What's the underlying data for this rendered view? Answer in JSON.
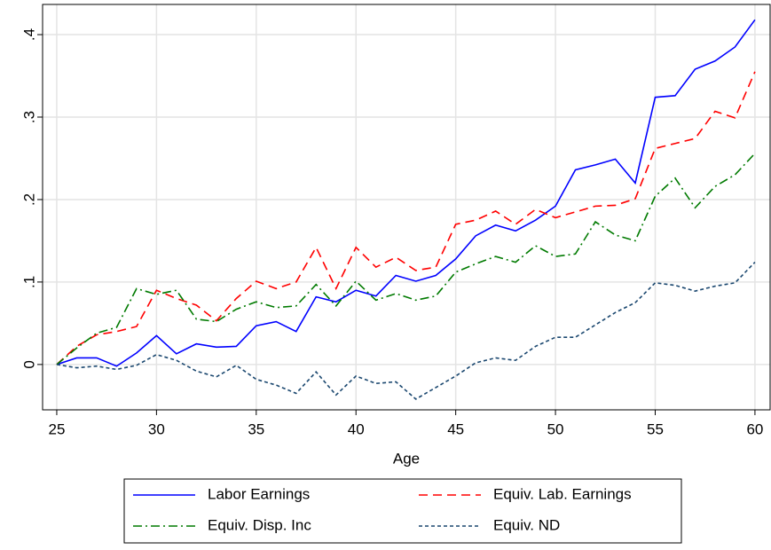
{
  "chart_data": {
    "type": "line",
    "x_label": "Age",
    "x": [
      25,
      26,
      27,
      28,
      29,
      30,
      31,
      32,
      33,
      34,
      35,
      36,
      37,
      38,
      39,
      40,
      41,
      42,
      43,
      44,
      45,
      46,
      47,
      48,
      49,
      50,
      51,
      52,
      53,
      54,
      55,
      56,
      57,
      58,
      59,
      60
    ],
    "series": [
      {
        "name": "Labor Earnings",
        "color": "#0000ff",
        "dash": "none",
        "values": [
          0,
          0.008,
          0.008,
          -0.002,
          0.014,
          0.035,
          0.013,
          0.025,
          0.021,
          0.022,
          0.047,
          0.052,
          0.04,
          0.082,
          0.076,
          0.09,
          0.083,
          0.108,
          0.101,
          0.108,
          0.128,
          0.156,
          0.169,
          0.162,
          0.175,
          0.192,
          0.236,
          0.242,
          0.249,
          0.22,
          0.324,
          0.326,
          0.358,
          0.368,
          0.385,
          0.418
        ]
      },
      {
        "name": "Equiv. Lab. Earnings",
        "color": "#ff0000",
        "dash": "10 6",
        "values": [
          0,
          0.022,
          0.036,
          0.04,
          0.046,
          0.09,
          0.08,
          0.072,
          0.053,
          0.08,
          0.101,
          0.092,
          0.1,
          0.142,
          0.092,
          0.142,
          0.118,
          0.13,
          0.114,
          0.118,
          0.17,
          0.175,
          0.186,
          0.17,
          0.188,
          0.178,
          0.185,
          0.192,
          0.193,
          0.201,
          0.262,
          0.268,
          0.274,
          0.307,
          0.299,
          0.355
        ]
      },
      {
        "name": "Equiv. Disp. Inc",
        "color": "#007a00",
        "dash": "10 4 2 4",
        "values": [
          0,
          0.02,
          0.038,
          0.045,
          0.092,
          0.085,
          0.09,
          0.055,
          0.052,
          0.067,
          0.076,
          0.069,
          0.071,
          0.097,
          0.071,
          0.101,
          0.078,
          0.086,
          0.078,
          0.083,
          0.112,
          0.122,
          0.131,
          0.124,
          0.144,
          0.131,
          0.134,
          0.173,
          0.157,
          0.15,
          0.204,
          0.226,
          0.19,
          0.216,
          0.23,
          0.256
        ]
      },
      {
        "name": "Equiv. ND",
        "color": "#1a476f",
        "dash": "4 3",
        "values": [
          0,
          -0.004,
          -0.002,
          -0.006,
          -0.001,
          0.012,
          0.005,
          -0.008,
          -0.015,
          -0.001,
          -0.018,
          -0.025,
          -0.035,
          -0.009,
          -0.037,
          -0.014,
          -0.023,
          -0.021,
          -0.042,
          -0.028,
          -0.014,
          0.002,
          0.008,
          0.005,
          0.022,
          0.033,
          0.033,
          0.048,
          0.063,
          0.075,
          0.099,
          0.096,
          0.089,
          0.095,
          0.099,
          0.124
        ]
      }
    ],
    "xlim": [
      24.29,
      60.76
    ],
    "xticks": [
      25,
      30,
      35,
      40,
      45,
      50,
      55,
      60
    ],
    "ylim": [
      -0.055,
      0.4366
    ],
    "yticks": [
      0,
      {
        "value": 0.1,
        "label": ".1"
      },
      {
        "value": 0.2,
        "label": ".2"
      },
      {
        "value": 0.3,
        "label": ".3"
      },
      {
        "value": 0.4,
        "label": ".4"
      }
    ],
    "grid": true
  }
}
